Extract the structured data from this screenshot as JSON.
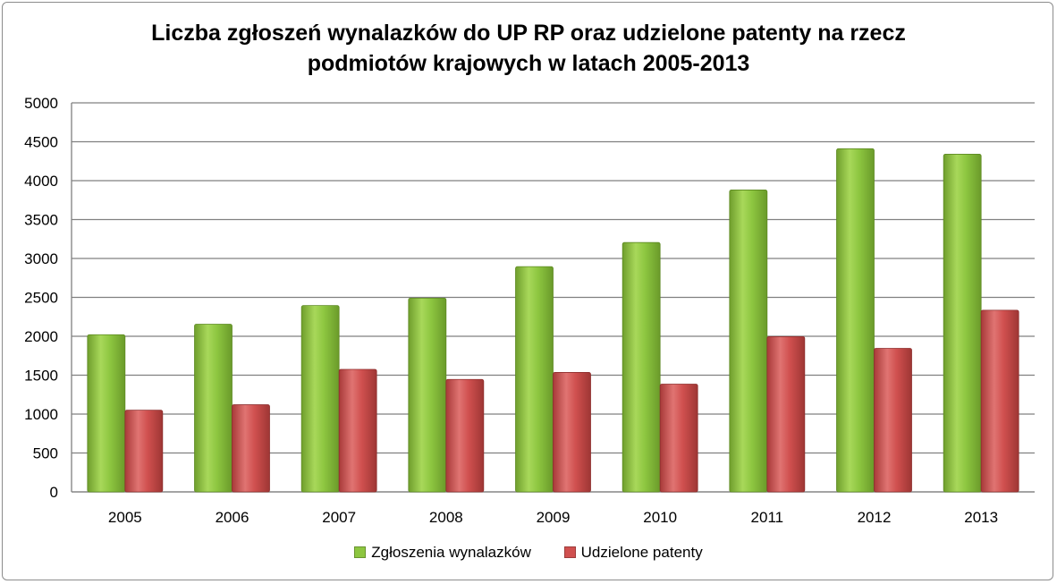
{
  "chart_data": {
    "type": "bar",
    "title_lines": [
      "Liczba zgłoszeń wynalazków do UP RP oraz udzielone patenty na rzecz",
      "podmiotów krajowych w latach 2005-2013"
    ],
    "xlabel": "",
    "ylabel": "",
    "categories": [
      "2005",
      "2006",
      "2007",
      "2008",
      "2009",
      "2010",
      "2011",
      "2012",
      "2013"
    ],
    "series": [
      {
        "name": "Zgłoszenia wynalazków",
        "color": "#8dc640",
        "values": [
          2020,
          2155,
          2395,
          2490,
          2895,
          3205,
          3880,
          4410,
          4340
        ]
      },
      {
        "name": "Udzielone patenty",
        "color": "#d0504f",
        "values": [
          1050,
          1120,
          1575,
          1445,
          1535,
          1385,
          1995,
          1845,
          2335
        ]
      }
    ],
    "ylim": [
      0,
      5000
    ],
    "yticks": [
      "0",
      "500",
      "1000",
      "1500",
      "2000",
      "2500",
      "3000",
      "3500",
      "4000",
      "4500",
      "5000"
    ],
    "grid": true,
    "legend_position": "bottom"
  }
}
